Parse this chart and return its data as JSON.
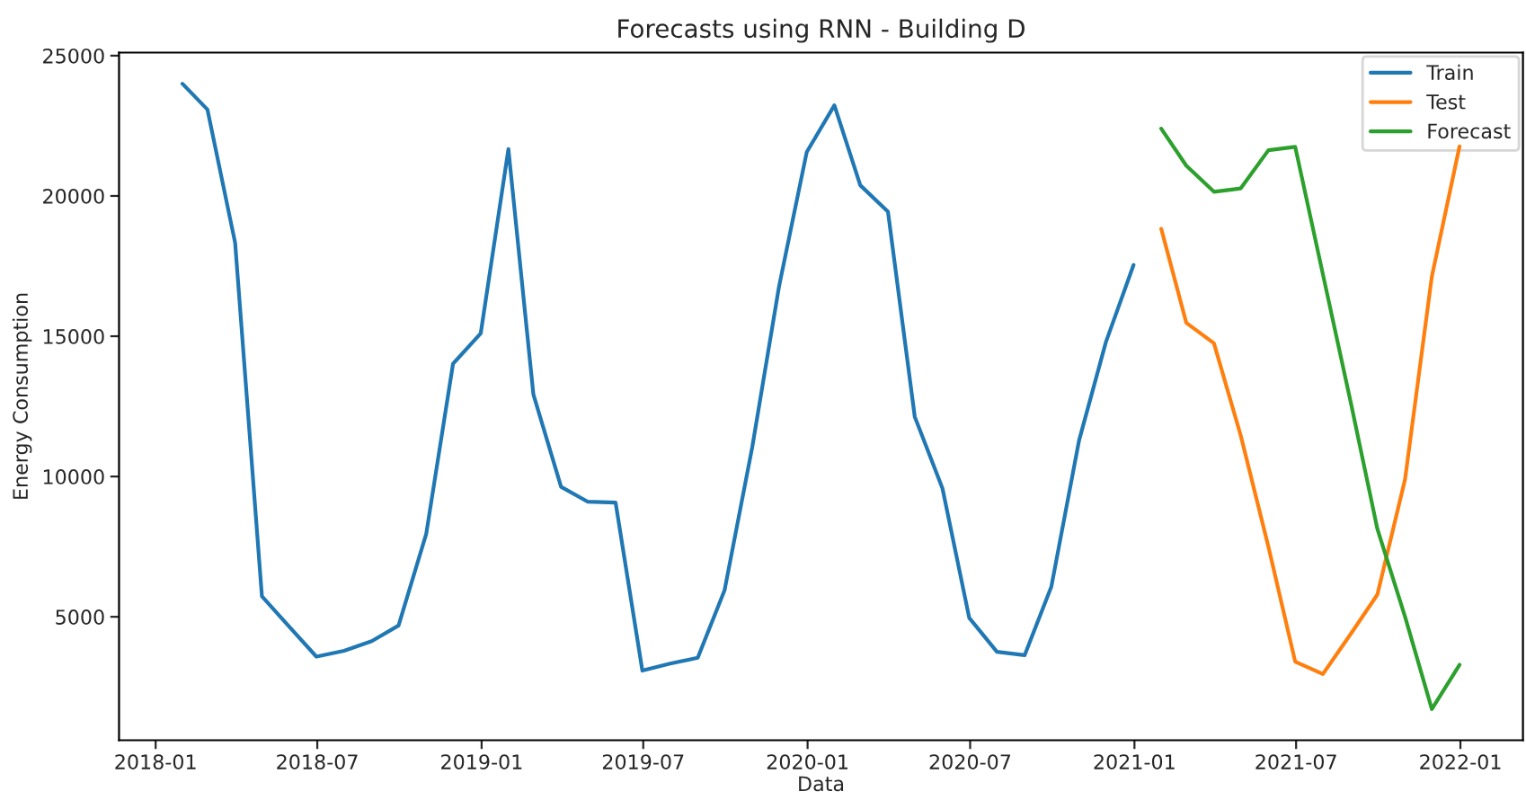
{
  "chart_data": {
    "type": "line",
    "title": "Forecasts using RNN - Building D",
    "xlabel": "Data",
    "ylabel": "Energy Consumption",
    "series": [
      {
        "name": "Train",
        "color": "#1f77b4",
        "x": [
          "2018-01-31",
          "2018-02-28",
          "2018-03-31",
          "2018-04-30",
          "2018-05-31",
          "2018-06-30",
          "2018-07-31",
          "2018-08-31",
          "2018-09-30",
          "2018-10-31",
          "2018-11-30",
          "2018-12-31",
          "2019-01-31",
          "2019-02-28",
          "2019-03-31",
          "2019-04-30",
          "2019-05-31",
          "2019-06-30",
          "2019-07-31",
          "2019-08-31",
          "2019-09-30",
          "2019-10-31",
          "2019-11-30",
          "2019-12-31",
          "2020-01-31",
          "2020-02-29",
          "2020-03-31",
          "2020-04-30",
          "2020-05-31",
          "2020-06-30",
          "2020-07-31",
          "2020-08-31",
          "2020-09-30",
          "2020-10-31",
          "2020-11-30",
          "2020-12-31"
        ],
        "values": [
          24000,
          23080,
          18330,
          5730,
          4630,
          3580,
          3790,
          4130,
          4690,
          7960,
          14020,
          15100,
          21670,
          12920,
          9630,
          9100,
          9070,
          3080,
          3330,
          3540,
          5940,
          11040,
          16770,
          21560,
          23230,
          20380,
          19440,
          12130,
          9580,
          4960,
          3750,
          3630,
          6080,
          11290,
          14790,
          17540
        ]
      },
      {
        "name": "Test",
        "color": "#ff7f0e",
        "x": [
          "2021-01-31",
          "2021-02-28",
          "2021-03-31",
          "2021-04-30",
          "2021-05-31",
          "2021-06-30",
          "2021-07-31",
          "2021-08-31",
          "2021-09-30",
          "2021-10-31",
          "2021-11-30",
          "2021-12-31"
        ],
        "values": [
          18830,
          15480,
          14750,
          11460,
          7500,
          3400,
          2960,
          4380,
          5790,
          9900,
          17130,
          21770
        ]
      },
      {
        "name": "Forecast",
        "color": "#2ca02c",
        "x": [
          "2021-01-31",
          "2021-02-28",
          "2021-03-31",
          "2021-04-30",
          "2021-05-31",
          "2021-06-30",
          "2021-07-31",
          "2021-08-31",
          "2021-09-30",
          "2021-10-31",
          "2021-11-30",
          "2021-12-31"
        ],
        "values": [
          22400,
          21080,
          20150,
          20270,
          21630,
          21750,
          17210,
          12670,
          8130,
          5000,
          1710,
          3290
        ]
      }
    ],
    "xlim": [
      "2017-11-21",
      "2022-03-12"
    ],
    "xticks": [
      {
        "value": "2018-01-01",
        "label": "2018-01"
      },
      {
        "value": "2018-07-01",
        "label": "2018-07"
      },
      {
        "value": "2019-01-01",
        "label": "2019-01"
      },
      {
        "value": "2019-07-01",
        "label": "2019-07"
      },
      {
        "value": "2020-01-01",
        "label": "2020-01"
      },
      {
        "value": "2020-07-01",
        "label": "2020-07"
      },
      {
        "value": "2021-01-01",
        "label": "2021-01"
      },
      {
        "value": "2021-07-01",
        "label": "2021-07"
      },
      {
        "value": "2022-01-01",
        "label": "2022-01"
      }
    ],
    "ylim": [
      600,
      25110
    ],
    "yticks": [
      5000,
      10000,
      15000,
      20000,
      25000
    ],
    "grid": false,
    "legend": "top right",
    "marker": "none",
    "line_style": "solid"
  }
}
